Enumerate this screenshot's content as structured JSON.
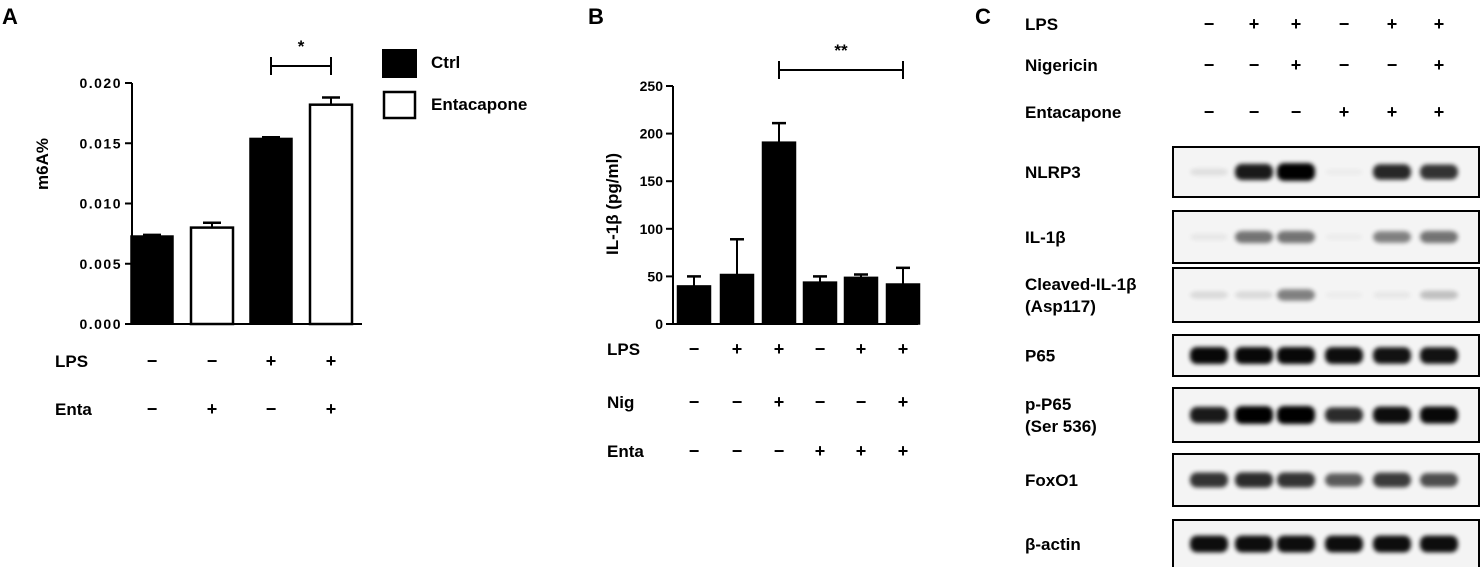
{
  "panels": {
    "a": {
      "letter": "A",
      "chart_data": {
        "type": "bar",
        "categories": [
          "LPS- Enta-",
          "LPS- Enta+",
          "LPS+ Enta-",
          "LPS+ Enta+"
        ],
        "values": [
          0.0073,
          0.008,
          0.0154,
          0.0182
        ],
        "errors": [
          0.0001,
          0.0004,
          0.0001,
          0.0006
        ],
        "fills": [
          "#000000",
          "#ffffff",
          "#000000",
          "#ffffff"
        ],
        "ylabel": "m6A%",
        "ylim": [
          0,
          0.02
        ],
        "yticks": [
          "0.000",
          "0.005",
          "0.010",
          "0.015",
          "0.020"
        ],
        "legend": [
          "Ctrl",
          "Entacapone"
        ],
        "legend_position": "top-right",
        "significance": [
          {
            "from": 2,
            "to": 3,
            "label": "*"
          }
        ],
        "conditions": [
          {
            "name": "LPS",
            "signs": [
              "−",
              "−",
              "+",
              "+"
            ]
          },
          {
            "name": "Enta",
            "signs": [
              "−",
              "+",
              "−",
              "+"
            ]
          }
        ]
      }
    },
    "b": {
      "letter": "B",
      "chart_data": {
        "type": "bar",
        "categories": [
          "1",
          "2",
          "3",
          "4",
          "5",
          "6"
        ],
        "values": [
          40,
          52,
          191,
          44,
          49,
          42
        ],
        "errors": [
          10,
          37,
          20,
          6,
          3,
          17
        ],
        "ylabel": "IL-1β (pg/ml)",
        "ylim": [
          0,
          250
        ],
        "yticks": [
          "0",
          "50",
          "100",
          "150",
          "200",
          "250"
        ],
        "significance": [
          {
            "from": 2,
            "to": 5,
            "label": "**"
          }
        ],
        "conditions": [
          {
            "name": "LPS",
            "signs": [
              "−",
              "+",
              "+",
              "−",
              "+",
              "+"
            ]
          },
          {
            "name": "Nig",
            "signs": [
              "−",
              "−",
              "+",
              "−",
              "−",
              "+"
            ]
          },
          {
            "name": "Enta",
            "signs": [
              "−",
              "−",
              "−",
              "+",
              "+",
              "+"
            ]
          }
        ]
      }
    },
    "c": {
      "letter": "C",
      "conditions": [
        {
          "name": "LPS",
          "signs": [
            "−",
            "+",
            "+",
            "−",
            "+",
            "+"
          ]
        },
        {
          "name": "Nigericin",
          "signs": [
            "−",
            "−",
            "+",
            "−",
            "−",
            "+"
          ]
        },
        {
          "name": "Entacapone",
          "signs": [
            "−",
            "−",
            "−",
            "+",
            "+",
            "+"
          ]
        }
      ],
      "blots": [
        {
          "label": [
            "NLRP3"
          ],
          "intensity": [
            0.08,
            0.85,
            0.97,
            0.03,
            0.8,
            0.75
          ]
        },
        {
          "label": [
            "IL-1β"
          ],
          "intensity": [
            0.05,
            0.5,
            0.5,
            0.03,
            0.45,
            0.5
          ]
        },
        {
          "label": [
            "Cleaved-IL-1β",
            "(Asp117)"
          ],
          "intensity": [
            0.1,
            0.1,
            0.45,
            0.03,
            0.05,
            0.2
          ]
        },
        {
          "label": [
            "P65"
          ],
          "intensity": [
            0.92,
            0.92,
            0.92,
            0.9,
            0.88,
            0.88
          ]
        },
        {
          "label": [
            "p-P65",
            "(Ser 536)"
          ],
          "intensity": [
            0.85,
            0.98,
            1.0,
            0.78,
            0.9,
            0.92
          ]
        },
        {
          "label": [
            "FoxO1"
          ],
          "intensity": [
            0.75,
            0.78,
            0.75,
            0.6,
            0.72,
            0.65
          ]
        },
        {
          "label": [
            "β-actin"
          ],
          "intensity": [
            0.9,
            0.9,
            0.9,
            0.9,
            0.9,
            0.9
          ]
        }
      ]
    }
  }
}
